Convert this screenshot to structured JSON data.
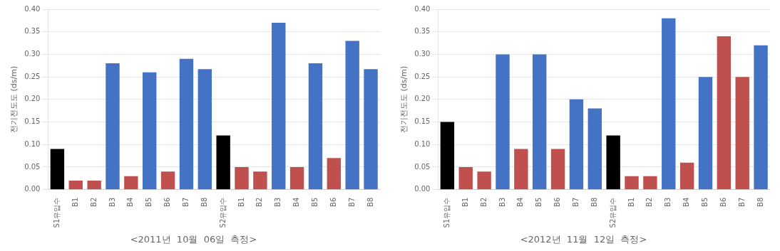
{
  "chart_data": [
    {
      "type": "bar",
      "title": "<2011년  10월  06일  측정>",
      "ylabel": "전기전도도 (ds/m)",
      "categories": [
        "S1유입수",
        "B1",
        "B2",
        "B3",
        "B4",
        "B5",
        "B6",
        "B7",
        "B8",
        "S2유입수",
        "B1",
        "B2",
        "B3",
        "B4",
        "B5",
        "B6",
        "B7",
        "B8"
      ],
      "values": [
        0.09,
        0.02,
        0.02,
        0.28,
        0.03,
        0.26,
        0.04,
        0.29,
        0.267,
        0.12,
        0.05,
        0.04,
        0.37,
        0.05,
        0.28,
        0.07,
        0.33,
        0.267
      ],
      "colors": [
        "#000000",
        "#c0504d",
        "#c0504d",
        "#4472c4",
        "#c0504d",
        "#4472c4",
        "#c0504d",
        "#4472c4",
        "#4472c4",
        "#000000",
        "#c0504d",
        "#c0504d",
        "#4472c4",
        "#c0504d",
        "#4472c4",
        "#c0504d",
        "#4472c4",
        "#4472c4"
      ],
      "ylim": [
        0,
        0.4
      ],
      "yticks": [
        {
          "value": 0,
          "label": "0.00"
        },
        0.05,
        {
          "value": 0.1,
          "label": "0.10"
        },
        0.15,
        {
          "value": 0.2,
          "label": "0.20"
        },
        0.25,
        {
          "value": 0.3,
          "label": "0.30"
        },
        0.35,
        {
          "value": 0.4,
          "label": "0.40"
        }
      ],
      "grid": true
    },
    {
      "type": "bar",
      "title": "<2012년  11월  12일  측정>",
      "ylabel": "전기전도도 (ds/m)",
      "categories": [
        "S1유입수",
        "B1",
        "B2",
        "B3",
        "B4",
        "B5",
        "B6",
        "B7",
        "B8",
        "S2유입수",
        "B1",
        "B2",
        "B3",
        "B4",
        "B5",
        "B6",
        "B7",
        "B8"
      ],
      "values": [
        0.15,
        0.05,
        0.04,
        0.3,
        0.09,
        0.3,
        0.09,
        0.2,
        0.18,
        0.12,
        0.03,
        0.03,
        0.38,
        0.06,
        0.25,
        0.34,
        0.25,
        0.32
      ],
      "colors": [
        "#000000",
        "#c0504d",
        "#c0504d",
        "#4472c4",
        "#c0504d",
        "#4472c4",
        "#c0504d",
        "#4472c4",
        "#4472c4",
        "#000000",
        "#c0504d",
        "#c0504d",
        "#4472c4",
        "#c0504d",
        "#4472c4",
        "#c0504d",
        "#c0504d",
        "#4472c4"
      ],
      "ylim": [
        0,
        0.4
      ],
      "yticks": [
        {
          "value": 0,
          "label": "0.00"
        },
        0.05,
        {
          "value": 0.1,
          "label": "0.10"
        },
        0.15,
        {
          "value": 0.2,
          "label": "0.20"
        },
        0.25,
        {
          "value": 0.3,
          "label": "0.30"
        },
        0.35,
        {
          "value": 0.4,
          "label": "0.40"
        }
      ],
      "grid": true
    }
  ]
}
